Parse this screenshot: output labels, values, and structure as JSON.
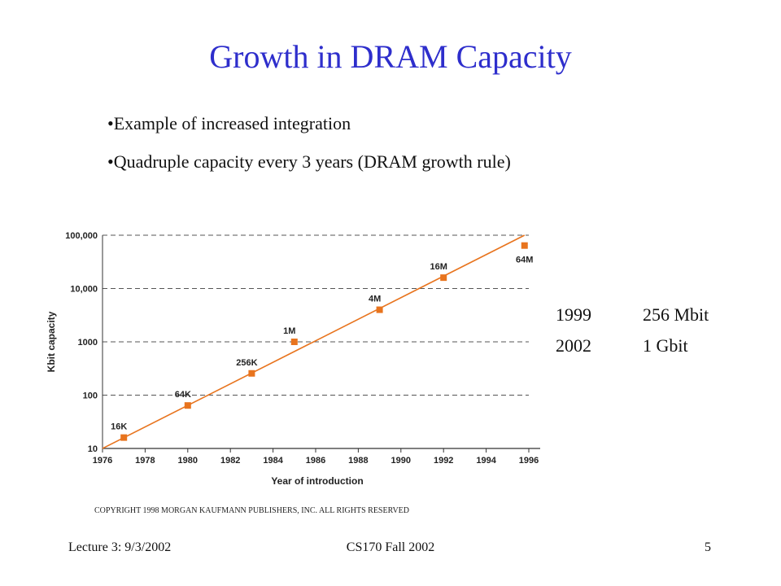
{
  "slide": {
    "title": "Growth in DRAM Capacity",
    "bullets": [
      "Example of increased integration",
      "Quadruple capacity every 3 years (DRAM growth rule)"
    ]
  },
  "side_table": [
    {
      "year": "1999",
      "capacity": "256 Mbit"
    },
    {
      "year": "2002",
      "capacity": "1 Gbit"
    }
  ],
  "copyright": "COPYRIGHT 1998 MORGAN KAUFMANN PUBLISHERS, INC. ALL RIGHTS RESERVED",
  "footer": {
    "left": "Lecture 3: 9/3/2002",
    "center": "CS170 Fall 2002",
    "right": "5"
  },
  "chart_data": {
    "type": "scatter",
    "xlabel": "Year of introduction",
    "ylabel": "Kbit capacity",
    "xlim": [
      1976,
      1996
    ],
    "ylim": [
      10,
      100000
    ],
    "y_scale": "log",
    "x_ticks": [
      "1976",
      "1978",
      "1980",
      "1982",
      "1984",
      "1986",
      "1988",
      "1990",
      "1992",
      "1994",
      "1996"
    ],
    "y_ticks": [
      {
        "value": 10,
        "label": "10"
      },
      {
        "value": 100,
        "label": "100"
      },
      {
        "value": 1000,
        "label": "1000"
      },
      {
        "value": 10000,
        "label": "10,000"
      },
      {
        "value": 100000,
        "label": "100,000"
      }
    ],
    "grid": "horizontal-dashed",
    "points": [
      {
        "label": "16K",
        "x": 1977,
        "y": 16
      },
      {
        "label": "64K",
        "x": 1980,
        "y": 64
      },
      {
        "label": "256K",
        "x": 1983,
        "y": 256
      },
      {
        "label": "1M",
        "x": 1985,
        "y": 1000
      },
      {
        "label": "4M",
        "x": 1989,
        "y": 4000
      },
      {
        "label": "16M",
        "x": 1992,
        "y": 16000
      },
      {
        "label": "64M",
        "x": 1995.8,
        "y": 64000
      }
    ],
    "trend_line": {
      "x": [
        1976,
        1995.8
      ],
      "y": [
        10,
        100000
      ]
    },
    "colors": {
      "marker": "#e8741e",
      "line": "#e8741e",
      "grid": "#555555"
    }
  }
}
